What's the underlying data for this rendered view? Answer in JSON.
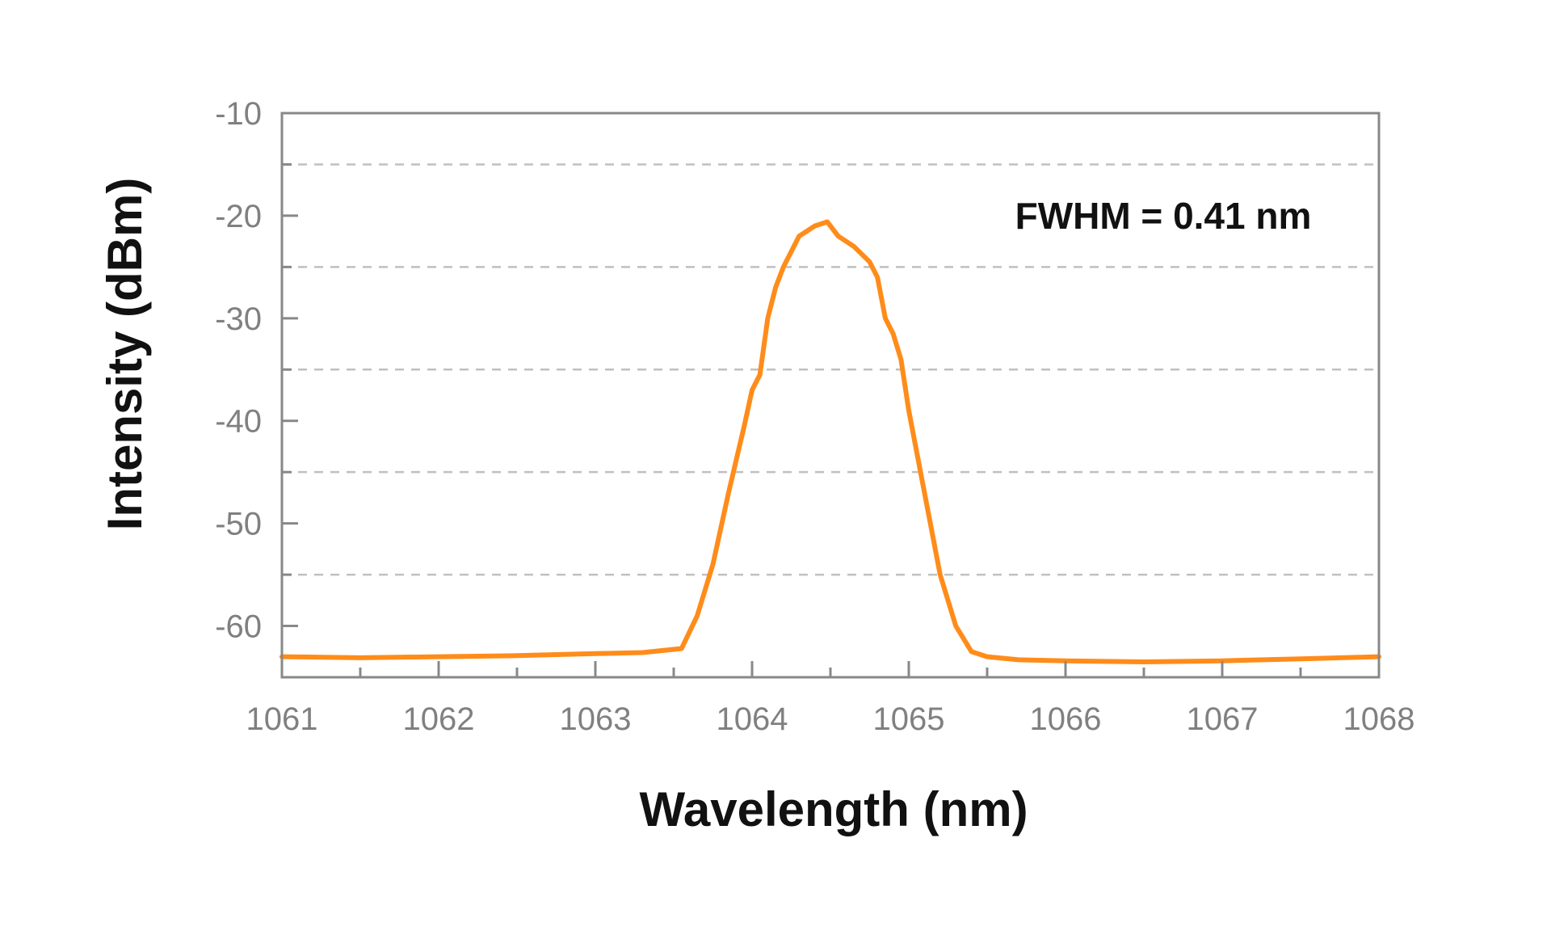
{
  "chart_data": {
    "type": "line",
    "title": "",
    "xlabel": "Wavelength (nm)",
    "ylabel": "Intensity (dBm)",
    "xlim": [
      1061,
      1068
    ],
    "ylim": [
      -65,
      -10
    ],
    "x_ticks": [
      1061,
      1062,
      1063,
      1064,
      1065,
      1066,
      1067,
      1068
    ],
    "x_tick_labels": [
      "1061",
      "1062",
      "1063",
      "1064",
      "1065",
      "1066",
      "1067",
      "1068"
    ],
    "y_ticks": [
      -60,
      -50,
      -40,
      -30,
      -20,
      -10
    ],
    "y_tick_labels": [
      "-60",
      "-50",
      "-40",
      "-30",
      "-20",
      "-10"
    ],
    "grid": {
      "horizontal_dashed": true,
      "y_values": [
        -15,
        -25,
        -35,
        -45,
        -55
      ]
    },
    "legend": "none",
    "annotation": "FWHM = 0.41 nm",
    "colors": {
      "series": "#ff8c1a",
      "axis": "#888888",
      "grid": "#c0c0c0"
    },
    "series": [
      {
        "x": [
          1061.0,
          1061.5,
          1062.0,
          1062.5,
          1063.0,
          1063.3,
          1063.55,
          1063.65,
          1063.75,
          1063.85,
          1063.95,
          1064.0,
          1064.05,
          1064.1,
          1064.15,
          1064.2,
          1064.3,
          1064.4,
          1064.48,
          1064.55,
          1064.65,
          1064.75,
          1064.8,
          1064.85,
          1064.9,
          1064.95,
          1065.0,
          1065.05,
          1065.1,
          1065.15,
          1065.2,
          1065.3,
          1065.4,
          1065.5,
          1065.7,
          1066.0,
          1066.5,
          1067.0,
          1067.5,
          1068.0
        ],
        "y": [
          -63.0,
          -63.1,
          -63.0,
          -62.9,
          -62.7,
          -62.6,
          -62.2,
          -59.0,
          -54.0,
          -47.0,
          -40.5,
          -37.0,
          -35.5,
          -30.0,
          -27.0,
          -25.0,
          -22.0,
          -21.0,
          -20.6,
          -22.0,
          -23.0,
          -24.5,
          -26.0,
          -30.0,
          -31.5,
          -34.0,
          -39.0,
          -43.0,
          -47.0,
          -51.0,
          -55.0,
          -60.0,
          -62.5,
          -63.0,
          -63.3,
          -63.4,
          -63.5,
          -63.4,
          -63.2,
          -63.0
        ]
      }
    ]
  }
}
